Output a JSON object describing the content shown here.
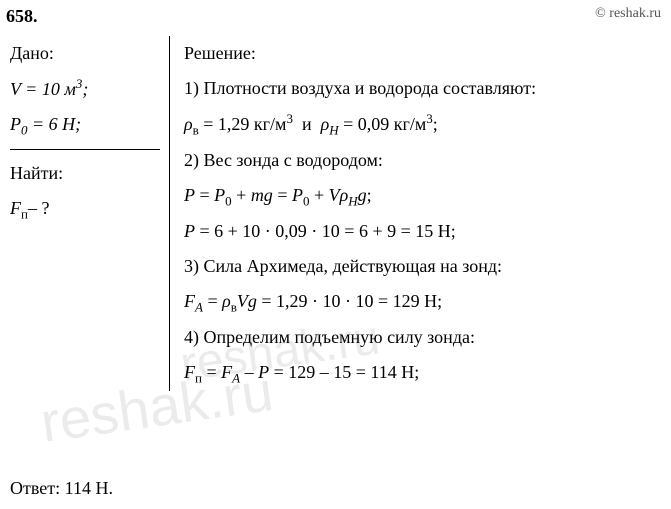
{
  "problem_number": "658.",
  "copyright": "© reshak.ru",
  "given": {
    "heading": "Дано:",
    "v_line": "V = 10 м³;",
    "p0_line": "P₀ = 6 Н;"
  },
  "find": {
    "heading": "Найти:",
    "f_line": "Fₚ – ?"
  },
  "solution": {
    "heading": "Решение:",
    "s1": "1) Плотности воздуха и водорода составляют:",
    "s1_eq": "ρᵦ = 1,29 кг/м³  и  ρₕ = 0,09 кг/м³;",
    "s2": "2) Вес зонда с водородом:",
    "s2_eq1": "P = P₀ + mg = P₀ + Vρₕg;",
    "s2_eq2": "P = 6 + 10 · 0,09 · 10 = 6 + 9 = 15 Н;",
    "s3": "3) Сила Архимеда, действующая на зонд:",
    "s3_eq": "Fₐ = ρᵦVg = 1,29 · 10 · 10 = 129 Н;",
    "s4": "4) Определим подъемную силу зонда:",
    "s4_eq": "Fₚ = Fₐ – P = 129 – 15 = 114 Н;"
  },
  "answer": "Ответ:  114 Н.",
  "watermark": "reshak.ru",
  "colors": {
    "text": "#000000",
    "background": "#ffffff",
    "watermark": "rgba(0,0,0,0.08)",
    "copyright": "#555555"
  },
  "fonts": {
    "body": "Times New Roman / Cambria",
    "size_main": 18,
    "size_sub": 13
  }
}
